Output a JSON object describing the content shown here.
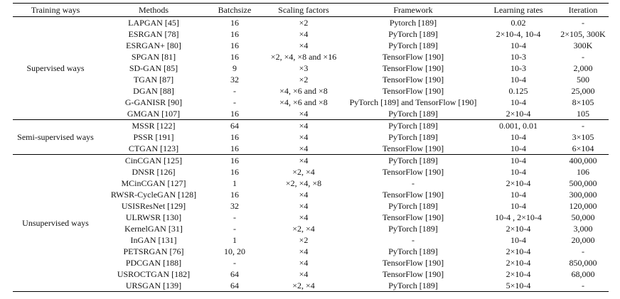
{
  "headers": [
    "Training ways",
    "Methods",
    "Batchsize",
    "Scaling factors",
    "Framework",
    "Learning rates",
    "Iteration"
  ],
  "groups": [
    {
      "way": "Supervised ways",
      "rows": [
        [
          "LAPGAN [45]",
          "16",
          "×2",
          "Pytorch [189]",
          "0.02",
          "-"
        ],
        [
          "ESRGAN [78]",
          "16",
          "×4",
          "PyTorch [189]",
          "2×10-4, 10-4",
          "2×105, 300K"
        ],
        [
          "ESRGAN+ [80]",
          "16",
          "×4",
          "PyTorch [189]",
          "10-4",
          "300K"
        ],
        [
          "SPGAN [81]",
          "16",
          "×2, ×4, ×8 and ×16",
          "TensorFlow [190]",
          "10-3",
          "-"
        ],
        [
          "SD-GAN [85]",
          "9",
          "×3",
          "TensorFlow [190]",
          "10-3",
          "2,000"
        ],
        [
          "TGAN [87]",
          "32",
          "×2",
          "TensorFlow [190]",
          "10-4",
          "500"
        ],
        [
          "DGAN [88]",
          "-",
          "×4, ×6 and ×8",
          "TensorFlow [190]",
          "0.125",
          "25,000"
        ],
        [
          "G-GANISR [90]",
          "-",
          "×4, ×6 and ×8",
          "PyTorch [189] and TensorFlow [190]",
          "10-4",
          "8×105"
        ],
        [
          "GMGAN [107]",
          "16",
          "×4",
          "PyTorch [189]",
          "2×10-4",
          "105"
        ]
      ]
    },
    {
      "way": "Semi-supervised ways",
      "rows": [
        [
          "MSSR [122]",
          "64",
          "×4",
          "PyTorch [189]",
          "0.001, 0.01",
          "-"
        ],
        [
          "PSSR [191]",
          "16",
          "×4",
          "PyTorch [189]",
          "10-4",
          "3×105"
        ],
        [
          "CTGAN [123]",
          "16",
          "×4",
          "TensorFlow [190]",
          "10-4",
          "6×104"
        ]
      ]
    },
    {
      "way": "Unsupervised ways",
      "rows": [
        [
          "CinCGAN [125]",
          "16",
          "×4",
          "PyTorch [189]",
          "10-4",
          "400,000"
        ],
        [
          "DNSR [126]",
          "16",
          "×2, ×4",
          "TensorFlow [190]",
          "10-4",
          "106"
        ],
        [
          "MCinCGAN [127]",
          "1",
          "×2, ×4, ×8",
          "-",
          "2×10-4",
          "500,000"
        ],
        [
          "RWSR-CycleGAN [128]",
          "16",
          "×4",
          "TensorFlow [190]",
          "10-4",
          "300,000"
        ],
        [
          "USISResNet [129]",
          "32",
          "×4",
          "PyTorch [189]",
          "10-4",
          "120,000"
        ],
        [
          "ULRWSR [130]",
          "-",
          "×4",
          "TensorFlow [190]",
          "10-4 , 2×10-4",
          "50,000"
        ],
        [
          "KernelGAN [31]",
          "-",
          "×2, ×4",
          "PyTorch [189]",
          "2×10-4",
          "3,000"
        ],
        [
          "InGAN [131]",
          "1",
          "×2",
          "-",
          "10-4",
          "20,000"
        ],
        [
          "PETSRGAN [76]",
          "10, 20",
          "×4",
          "PyTorch [189]",
          "2×10-4",
          "-"
        ],
        [
          "PDCGAN [188]",
          "-",
          "×4",
          "TensorFlow [190]",
          "2×10-4",
          "850,000"
        ],
        [
          "USROCTGAN [182]",
          "64",
          "×4",
          "TensorFlow [190]",
          "2×10-4",
          "68,000"
        ],
        [
          "URSGAN [139]",
          "64",
          "×2, ×4",
          "PyTorch [189]",
          "5×10-4",
          "-"
        ]
      ]
    }
  ]
}
